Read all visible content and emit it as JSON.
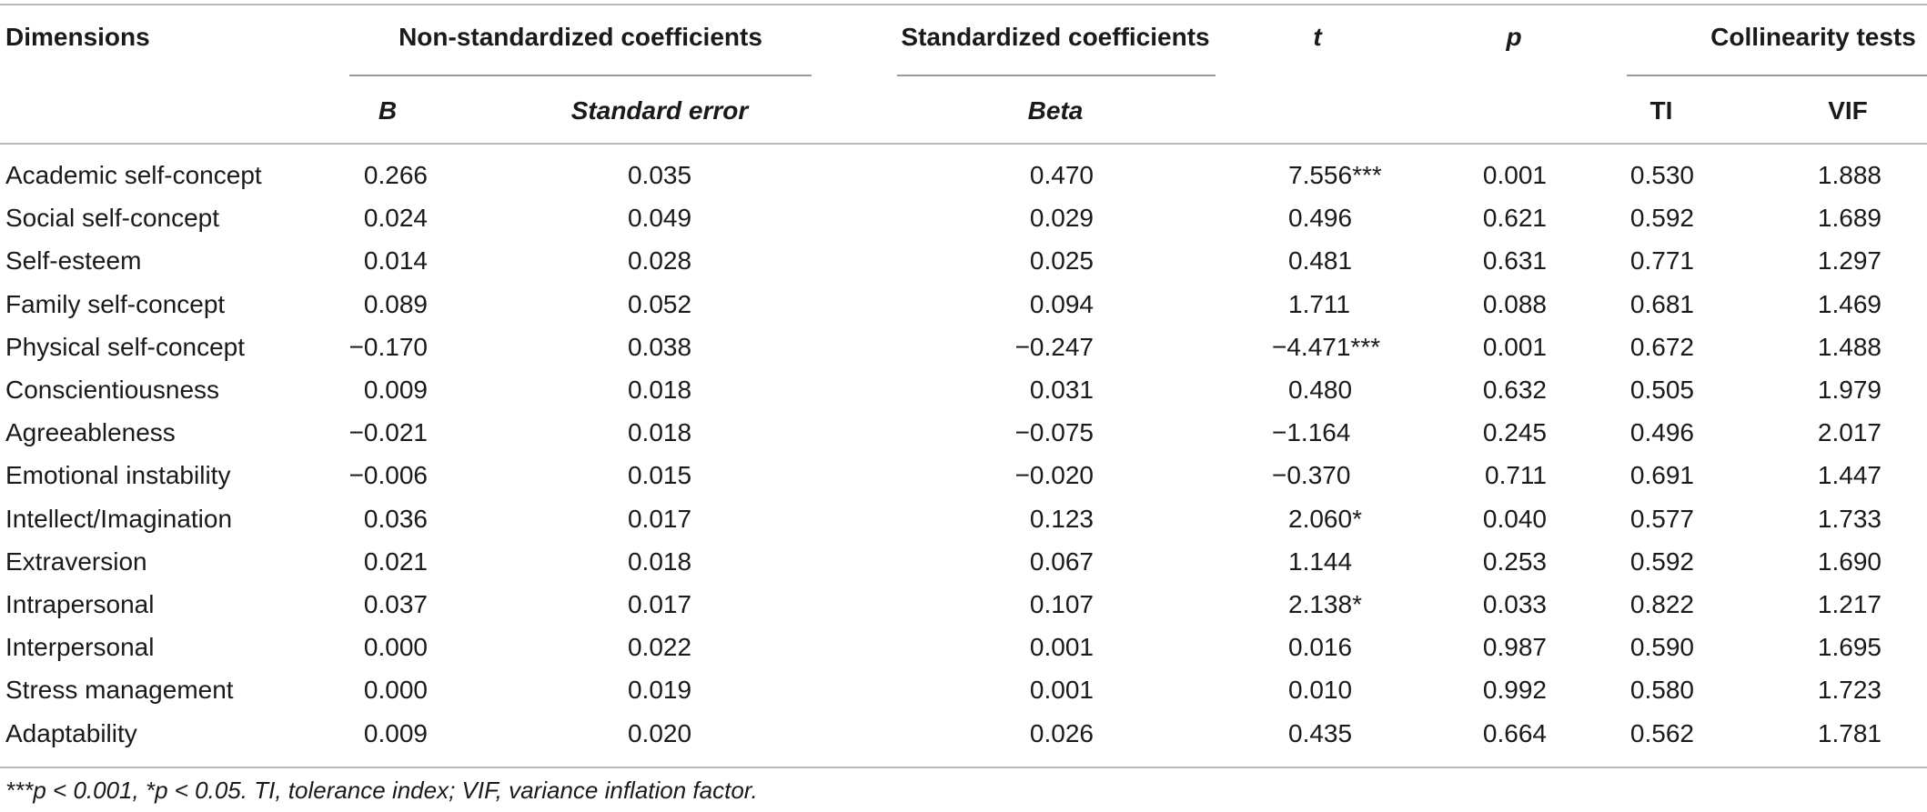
{
  "table": {
    "headers": {
      "dimensions": "Dimensions",
      "non_standardized": "Non-standardized coefficients",
      "standardized": "Standardized coefficients",
      "t": "t",
      "p": "p",
      "collinearity": "Collinearity tests",
      "b": "B",
      "standard_error": "Standard error",
      "beta": "Beta",
      "ti": "TI",
      "vif": "VIF"
    },
    "rows": [
      {
        "dimension": "Academic self-concept",
        "b": "0.266",
        "se": "0.035",
        "beta": "0.470",
        "t": "7.556***",
        "p": "0.001",
        "ti": "0.530",
        "vif": "1.888"
      },
      {
        "dimension": "Social self-concept",
        "b": "0.024",
        "se": "0.049",
        "beta": "0.029",
        "t": "0.496",
        "p": "0.621",
        "ti": "0.592",
        "vif": "1.689"
      },
      {
        "dimension": "Self-esteem",
        "b": "0.014",
        "se": "0.028",
        "beta": "0.025",
        "t": "0.481",
        "p": "0.631",
        "ti": "0.771",
        "vif": "1.297"
      },
      {
        "dimension": "Family self-concept",
        "b": "0.089",
        "se": "0.052",
        "beta": "0.094",
        "t": "1.711",
        "p": "0.088",
        "ti": "0.681",
        "vif": "1.469"
      },
      {
        "dimension": "Physical self-concept",
        "b": "−0.170",
        "se": "0.038",
        "beta": "−0.247",
        "t": "−4.471***",
        "p": "0.001",
        "ti": "0.672",
        "vif": "1.488"
      },
      {
        "dimension": "Conscientiousness",
        "b": "0.009",
        "se": "0.018",
        "beta": "0.031",
        "t": "0.480",
        "p": "0.632",
        "ti": "0.505",
        "vif": "1.979"
      },
      {
        "dimension": "Agreeableness",
        "b": "−0.021",
        "se": "0.018",
        "beta": "−0.075",
        "t": "−1.164",
        "p": "0.245",
        "ti": "0.496",
        "vif": "2.017"
      },
      {
        "dimension": "Emotional instability",
        "b": "−0.006",
        "se": "0.015",
        "beta": "−0.020",
        "t": "−0.370",
        "p": "0.711",
        "ti": "0.691",
        "vif": "1.447"
      },
      {
        "dimension": "Intellect/Imagination",
        "b": "0.036",
        "se": "0.017",
        "beta": "0.123",
        "t": "2.060*",
        "p": "0.040",
        "ti": "0.577",
        "vif": "1.733"
      },
      {
        "dimension": "Extraversion",
        "b": "0.021",
        "se": "0.018",
        "beta": "0.067",
        "t": "1.144",
        "p": "0.253",
        "ti": "0.592",
        "vif": "1.690"
      },
      {
        "dimension": "Intrapersonal",
        "b": "0.037",
        "se": "0.017",
        "beta": "0.107",
        "t": "2.138*",
        "p": "0.033",
        "ti": "0.822",
        "vif": "1.217"
      },
      {
        "dimension": "Interpersonal",
        "b": "0.000",
        "se": "0.022",
        "beta": "0.001",
        "t": "0.016",
        "p": "0.987",
        "ti": "0.590",
        "vif": "1.695"
      },
      {
        "dimension": "Stress management",
        "b": "0.000",
        "se": "0.019",
        "beta": "0.001",
        "t": "0.010",
        "p": "0.992",
        "ti": "0.580",
        "vif": "1.723"
      },
      {
        "dimension": "Adaptability",
        "b": "0.009",
        "se": "0.020",
        "beta": "0.026",
        "t": "0.435",
        "p": "0.664",
        "ti": "0.562",
        "vif": "1.781"
      }
    ],
    "footnote": "***p < 0.001, *p < 0.05. TI, tolerance index; VIF, variance inflation factor."
  }
}
